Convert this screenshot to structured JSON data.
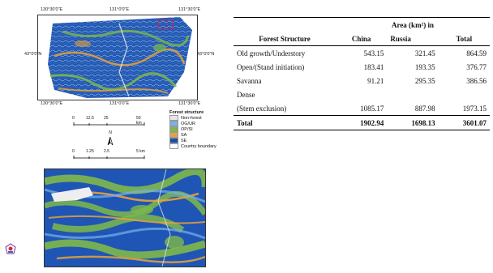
{
  "map_coords": {
    "top": [
      "130°30'0\"E",
      "131°0'0\"E",
      "131°30'0\"E"
    ],
    "bottom": [
      "130°30'0\"E",
      "131°0'0\"E",
      "131°30'0\"E"
    ],
    "left": "43°0'0\"N",
    "right": "43°0'0\"N"
  },
  "scalebar_1": {
    "labels": [
      "0",
      "12.5",
      "25",
      "50 km"
    ]
  },
  "scalebar_2": {
    "labels": [
      "0",
      "1.25",
      "2.5",
      "5 km"
    ]
  },
  "north_arrow": "N",
  "legend": {
    "title": "Forest structure",
    "items": [
      {
        "label": "Non-forest",
        "color": "#e6e6e6"
      },
      {
        "label": "OG/UR",
        "color": "#7ab0e8"
      },
      {
        "label": "OP/SI",
        "color": "#7eb84a"
      },
      {
        "label": "SA",
        "color": "#e8a23a"
      },
      {
        "label": "SE",
        "color": "#1a4fa8"
      },
      {
        "label": "Country boundary",
        "color": "#ffffff"
      }
    ]
  },
  "table": {
    "area_header": "Area (km²) in",
    "columns": [
      "Forest Structure",
      "China",
      "Russia",
      "Total"
    ],
    "rows": [
      {
        "name": "Old growth/Understory",
        "china": "543.15",
        "russia": "321.45",
        "total": "864.59"
      },
      {
        "name": "Open/(Stand initiation)",
        "china": "183.41",
        "russia": "193.35",
        "total": "376.77"
      },
      {
        "name": "Savanna",
        "china": "91.21",
        "russia": "295.35",
        "total": "386.56"
      },
      {
        "name": "Dense",
        "china": "",
        "russia": "",
        "total": ""
      },
      {
        "name": "(Stem exclusion)",
        "china": "1085.17",
        "russia": "887.98",
        "total": "1973.15"
      }
    ],
    "total_row": {
      "name": "Total",
      "china": "1902.94",
      "russia": "1698.13",
      "total": "3601.07"
    }
  }
}
